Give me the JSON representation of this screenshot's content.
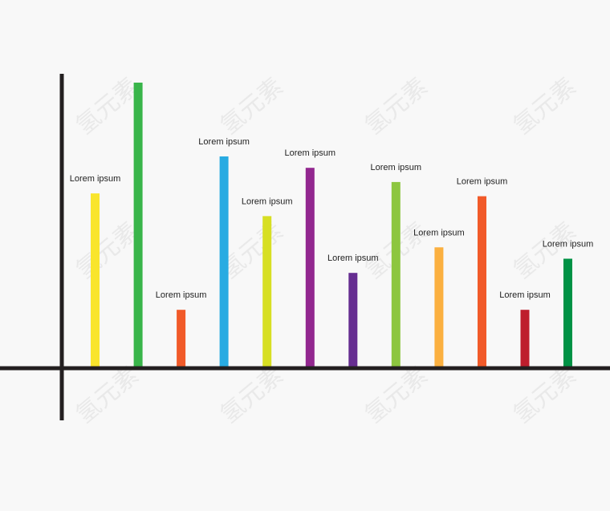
{
  "watermark": "氢元素",
  "chart_data": {
    "type": "bar",
    "title": "",
    "xlabel": "",
    "ylabel": "",
    "ylim": [
      0,
      100
    ],
    "grid": false,
    "legend": "none",
    "axis_color": "#231f20",
    "series": [
      {
        "values": [
          61,
          100,
          20,
          74,
          53,
          70,
          33,
          65,
          42,
          60,
          20,
          38
        ],
        "labels": [
          "Lorem ipsum",
          "",
          "Lorem ipsum",
          "Lorem ipsum",
          "Lorem ipsum",
          "Lorem ipsum",
          "Lorem ipsum",
          "Lorem ipsum",
          "Lorem ipsum",
          "Lorem ipsum",
          "Lorem ipsum",
          "Lorem ipsum"
        ],
        "colors": [
          "#f9e52c",
          "#39b54a",
          "#f15a29",
          "#29abe2",
          "#d7df23",
          "#92278f",
          "#662d91",
          "#8dc63f",
          "#fbb040",
          "#f15a29",
          "#be1e2d",
          "#009245"
        ]
      }
    ]
  }
}
